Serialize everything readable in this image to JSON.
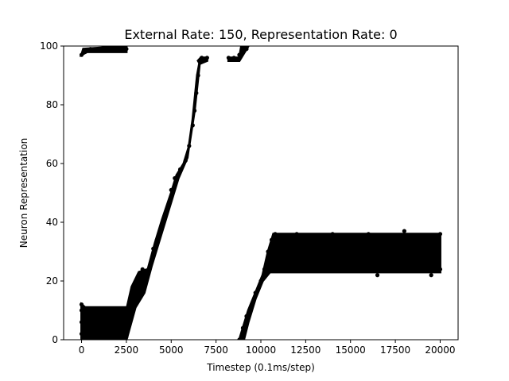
{
  "chart_data": {
    "type": "scatter",
    "title": "External Rate: 150, Representation Rate: 0",
    "xlabel": "Timestep (0.1ms/step)",
    "ylabel": "Neuron Representation",
    "xlim": [
      -1000,
      21000
    ],
    "ylim": [
      0,
      100
    ],
    "xticks": [
      0,
      2500,
      5000,
      7500,
      10000,
      12500,
      15000,
      17500,
      20000
    ],
    "yticks": [
      0,
      20,
      40,
      60,
      80,
      100
    ],
    "grid": false,
    "legend": "none",
    "marker_color": "#000000",
    "series": [
      {
        "points": [
          [
            0,
            97
          ],
          [
            200,
            98
          ],
          [
            500,
            99
          ],
          [
            1000,
            99
          ],
          [
            1500,
            99
          ],
          [
            2000,
            99
          ],
          [
            2500,
            99
          ],
          [
            0,
            2
          ],
          [
            0,
            6
          ],
          [
            0,
            10
          ],
          [
            0,
            12
          ],
          [
            300,
            3
          ],
          [
            600,
            8
          ],
          [
            900,
            5
          ],
          [
            1200,
            10
          ],
          [
            1500,
            2
          ],
          [
            1800,
            7
          ],
          [
            2100,
            4
          ],
          [
            2400,
            9
          ],
          [
            2500,
            1
          ],
          [
            2600,
            11
          ],
          [
            2800,
            15
          ],
          [
            3000,
            19
          ],
          [
            3200,
            22
          ],
          [
            3400,
            24
          ],
          [
            3600,
            23
          ],
          [
            4000,
            31
          ],
          [
            4200,
            34
          ],
          [
            4500,
            39
          ],
          [
            4800,
            45
          ],
          [
            5000,
            51
          ],
          [
            5200,
            55
          ],
          [
            5500,
            58
          ],
          [
            5800,
            61
          ],
          [
            6000,
            66
          ],
          [
            6200,
            73
          ],
          [
            6300,
            78
          ],
          [
            6400,
            84
          ],
          [
            6500,
            90
          ],
          [
            6600,
            95
          ],
          [
            6700,
            96
          ],
          [
            7000,
            96
          ],
          [
            8200,
            96
          ],
          [
            8500,
            96
          ],
          [
            8800,
            97
          ],
          [
            9000,
            98
          ],
          [
            9200,
            99
          ],
          [
            8800,
            0
          ],
          [
            9000,
            4
          ],
          [
            9200,
            8
          ],
          [
            9500,
            12
          ],
          [
            9700,
            16
          ],
          [
            10000,
            20
          ],
          [
            10200,
            24
          ],
          [
            10400,
            30
          ],
          [
            10600,
            34
          ],
          [
            10800,
            36
          ],
          [
            11000,
            24
          ],
          [
            12000,
            36
          ],
          [
            13000,
            24
          ],
          [
            14000,
            36
          ],
          [
            15000,
            24
          ],
          [
            16000,
            36
          ],
          [
            16500,
            22
          ],
          [
            17000,
            24
          ],
          [
            18000,
            37
          ],
          [
            19500,
            22
          ],
          [
            20000,
            36
          ],
          [
            20000,
            24
          ]
        ]
      }
    ]
  }
}
